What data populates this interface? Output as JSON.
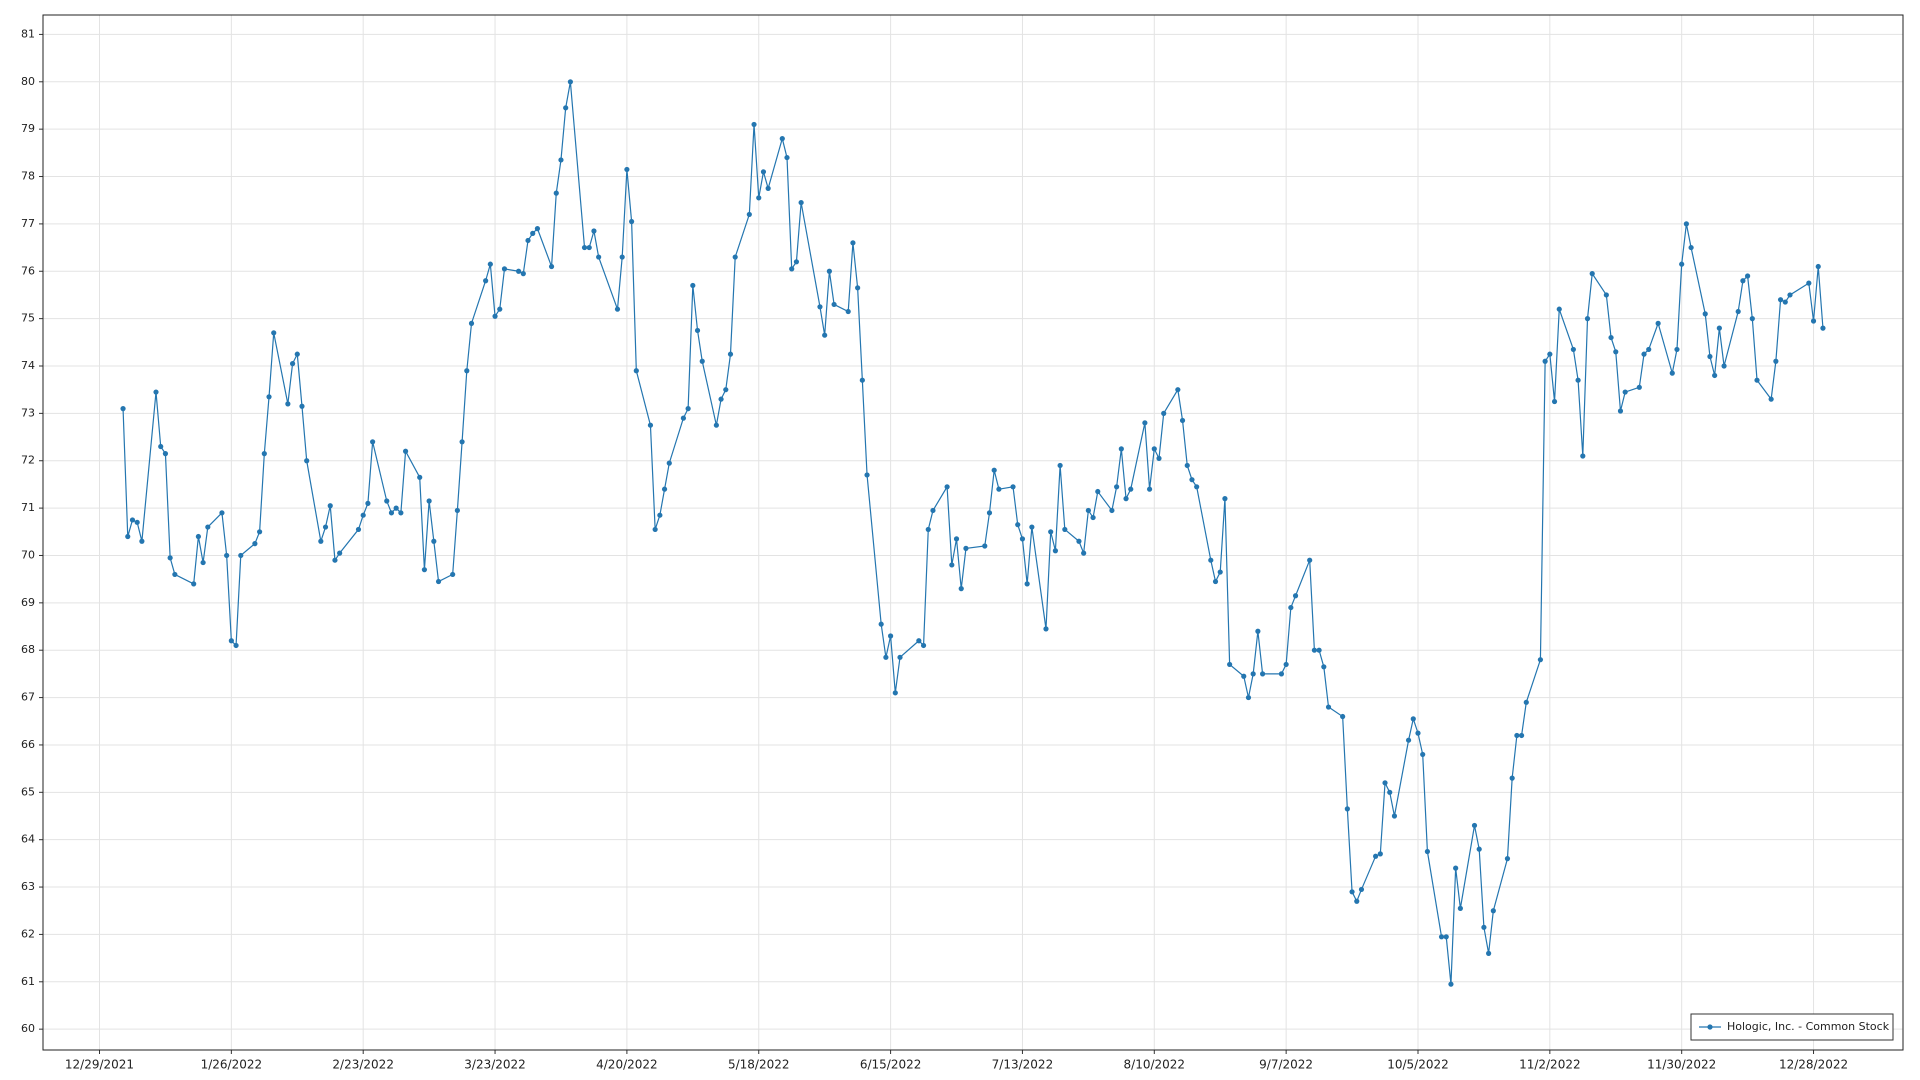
{
  "chart_data": {
    "type": "line",
    "x": [
      "2022-01-03",
      "2022-01-04",
      "2022-01-05",
      "2022-01-06",
      "2022-01-07",
      "2022-01-10",
      "2022-01-11",
      "2022-01-12",
      "2022-01-13",
      "2022-01-14",
      "2022-01-18",
      "2022-01-19",
      "2022-01-20",
      "2022-01-21",
      "2022-01-24",
      "2022-01-25",
      "2022-01-26",
      "2022-01-27",
      "2022-01-28",
      "2022-01-31",
      "2022-02-01",
      "2022-02-02",
      "2022-02-03",
      "2022-02-04",
      "2022-02-07",
      "2022-02-08",
      "2022-02-09",
      "2022-02-10",
      "2022-02-11",
      "2022-02-14",
      "2022-02-15",
      "2022-02-16",
      "2022-02-17",
      "2022-02-18",
      "2022-02-22",
      "2022-02-23",
      "2022-02-24",
      "2022-02-25",
      "2022-02-28",
      "2022-03-01",
      "2022-03-02",
      "2022-03-03",
      "2022-03-04",
      "2022-03-07",
      "2022-03-08",
      "2022-03-09",
      "2022-03-10",
      "2022-03-11",
      "2022-03-14",
      "2022-03-15",
      "2022-03-16",
      "2022-03-17",
      "2022-03-18",
      "2022-03-21",
      "2022-03-22",
      "2022-03-23",
      "2022-03-24",
      "2022-03-25",
      "2022-03-28",
      "2022-03-29",
      "2022-03-30",
      "2022-03-31",
      "2022-04-01",
      "2022-04-04",
      "2022-04-05",
      "2022-04-06",
      "2022-04-07",
      "2022-04-08",
      "2022-04-11",
      "2022-04-12",
      "2022-04-13",
      "2022-04-14",
      "2022-04-18",
      "2022-04-19",
      "2022-04-20",
      "2022-04-21",
      "2022-04-22",
      "2022-04-25",
      "2022-04-26",
      "2022-04-27",
      "2022-04-28",
      "2022-04-29",
      "2022-05-02",
      "2022-05-03",
      "2022-05-04",
      "2022-05-05",
      "2022-05-06",
      "2022-05-09",
      "2022-05-10",
      "2022-05-11",
      "2022-05-12",
      "2022-05-13",
      "2022-05-16",
      "2022-05-17",
      "2022-05-18",
      "2022-05-19",
      "2022-05-20",
      "2022-05-23",
      "2022-05-24",
      "2022-05-25",
      "2022-05-26",
      "2022-05-27",
      "2022-05-31",
      "2022-06-01",
      "2022-06-02",
      "2022-06-03",
      "2022-06-06",
      "2022-06-07",
      "2022-06-08",
      "2022-06-09",
      "2022-06-10",
      "2022-06-13",
      "2022-06-14",
      "2022-06-15",
      "2022-06-16",
      "2022-06-17",
      "2022-06-21",
      "2022-06-22",
      "2022-06-23",
      "2022-06-24",
      "2022-06-27",
      "2022-06-28",
      "2022-06-29",
      "2022-06-30",
      "2022-07-01",
      "2022-07-05",
      "2022-07-06",
      "2022-07-07",
      "2022-07-08",
      "2022-07-11",
      "2022-07-12",
      "2022-07-13",
      "2022-07-14",
      "2022-07-15",
      "2022-07-18",
      "2022-07-19",
      "2022-07-20",
      "2022-07-21",
      "2022-07-22",
      "2022-07-25",
      "2022-07-26",
      "2022-07-27",
      "2022-07-28",
      "2022-07-29",
      "2022-08-01",
      "2022-08-02",
      "2022-08-03",
      "2022-08-04",
      "2022-08-05",
      "2022-08-08",
      "2022-08-09",
      "2022-08-10",
      "2022-08-11",
      "2022-08-12",
      "2022-08-15",
      "2022-08-16",
      "2022-08-17",
      "2022-08-18",
      "2022-08-19",
      "2022-08-22",
      "2022-08-23",
      "2022-08-24",
      "2022-08-25",
      "2022-08-26",
      "2022-08-29",
      "2022-08-30",
      "2022-08-31",
      "2022-09-01",
      "2022-09-02",
      "2022-09-06",
      "2022-09-07",
      "2022-09-08",
      "2022-09-09",
      "2022-09-12",
      "2022-09-13",
      "2022-09-14",
      "2022-09-15",
      "2022-09-16",
      "2022-09-19",
      "2022-09-20",
      "2022-09-21",
      "2022-09-22",
      "2022-09-23",
      "2022-09-26",
      "2022-09-27",
      "2022-09-28",
      "2022-09-29",
      "2022-09-30",
      "2022-10-03",
      "2022-10-04",
      "2022-10-05",
      "2022-10-06",
      "2022-10-07",
      "2022-10-10",
      "2022-10-11",
      "2022-10-12",
      "2022-10-13",
      "2022-10-14",
      "2022-10-17",
      "2022-10-18",
      "2022-10-19",
      "2022-10-20",
      "2022-10-21",
      "2022-10-24",
      "2022-10-25",
      "2022-10-26",
      "2022-10-27",
      "2022-10-28",
      "2022-10-31",
      "2022-11-01",
      "2022-11-02",
      "2022-11-03",
      "2022-11-04",
      "2022-11-07",
      "2022-11-08",
      "2022-11-09",
      "2022-11-10",
      "2022-11-11",
      "2022-11-14",
      "2022-11-15",
      "2022-11-16",
      "2022-11-17",
      "2022-11-18",
      "2022-11-21",
      "2022-11-22",
      "2022-11-23",
      "2022-11-25",
      "2022-11-28",
      "2022-11-29",
      "2022-11-30",
      "2022-12-01",
      "2022-12-02",
      "2022-12-05",
      "2022-12-06",
      "2022-12-07",
      "2022-12-08",
      "2022-12-09",
      "2022-12-12",
      "2022-12-13",
      "2022-12-14",
      "2022-12-15",
      "2022-12-16",
      "2022-12-19",
      "2022-12-20",
      "2022-12-21",
      "2022-12-22",
      "2022-12-23",
      "2022-12-27",
      "2022-12-28",
      "2022-12-29",
      "2022-12-30"
    ],
    "series": [
      {
        "name": "Hologic, Inc. - Common Stock",
        "color": "#2476b0",
        "values": [
          73.1,
          70.4,
          70.75,
          70.7,
          70.3,
          73.45,
          72.3,
          72.15,
          69.95,
          69.6,
          69.4,
          70.4,
          69.85,
          70.6,
          70.9,
          70.0,
          68.2,
          68.1,
          70.0,
          70.25,
          70.5,
          72.15,
          73.35,
          74.7,
          73.2,
          74.05,
          74.25,
          73.15,
          72.0,
          70.3,
          70.6,
          71.05,
          69.9,
          70.05,
          70.55,
          70.85,
          71.1,
          72.4,
          71.15,
          70.9,
          71.0,
          70.9,
          72.2,
          71.65,
          69.7,
          71.15,
          70.3,
          69.45,
          69.6,
          70.95,
          72.4,
          73.9,
          74.9,
          75.8,
          76.15,
          75.05,
          75.2,
          76.05,
          76.0,
          75.95,
          76.65,
          76.8,
          76.9,
          76.1,
          77.65,
          78.35,
          79.45,
          80.0,
          76.5,
          76.5,
          76.85,
          76.3,
          75.2,
          76.3,
          78.15,
          77.05,
          73.9,
          72.75,
          70.55,
          70.85,
          71.4,
          71.95,
          72.9,
          73.1,
          75.7,
          74.75,
          74.1,
          72.75,
          73.3,
          73.5,
          74.25,
          76.3,
          77.2,
          79.1,
          77.55,
          78.1,
          77.75,
          78.8,
          78.4,
          76.05,
          76.2,
          77.45,
          75.25,
          74.65,
          76.0,
          75.3,
          75.15,
          76.6,
          75.65,
          73.7,
          71.7,
          68.55,
          67.85,
          68.3,
          67.1,
          67.85,
          68.2,
          68.1,
          70.55,
          70.95,
          71.45,
          69.8,
          70.35,
          69.3,
          70.15,
          70.2,
          70.9,
          71.8,
          71.4,
          71.45,
          70.65,
          70.35,
          69.4,
          70.6,
          68.45,
          70.5,
          70.1,
          71.9,
          70.55,
          70.3,
          70.05,
          70.95,
          70.8,
          71.35,
          70.95,
          71.45,
          72.25,
          71.2,
          71.4,
          72.8,
          71.4,
          72.25,
          72.05,
          73.0,
          73.5,
          72.85,
          71.9,
          71.6,
          71.45,
          69.9,
          69.45,
          69.65,
          71.2,
          67.7,
          67.45,
          67.0,
          67.5,
          68.4,
          67.5,
          67.5,
          67.7,
          68.9,
          69.15,
          69.9,
          68.0,
          68.0,
          67.65,
          66.8,
          66.6,
          64.65,
          62.9,
          62.7,
          62.95,
          63.65,
          63.7,
          65.2,
          65.0,
          64.5,
          66.1,
          66.55,
          66.25,
          65.8,
          63.75,
          61.95,
          61.95,
          60.95,
          63.4,
          62.55,
          64.3,
          63.8,
          62.15,
          61.6,
          62.5,
          63.6,
          65.3,
          66.2,
          66.2,
          66.9,
          67.8,
          74.1,
          74.25,
          73.25,
          75.2,
          74.35,
          73.7,
          72.1,
          75.0,
          75.95,
          75.5,
          74.6,
          74.3,
          73.05,
          73.45,
          73.55,
          74.25,
          74.35,
          74.9,
          73.85,
          74.35,
          76.15,
          77.0,
          76.5,
          75.1,
          74.2,
          73.8,
          74.8,
          74.0,
          75.15,
          75.8,
          75.9,
          75.0,
          73.7,
          73.3,
          74.1,
          75.4,
          75.35,
          75.5,
          75.75,
          74.95,
          76.1,
          74.8
        ]
      }
    ],
    "xlim": [
      "2021-12-17",
      "2023-01-16"
    ],
    "xticks": [
      {
        "value": "2021-12-29",
        "label": "12/29/2021"
      },
      {
        "value": "2022-01-26",
        "label": "1/26/2022"
      },
      {
        "value": "2022-02-23",
        "label": "2/23/2022"
      },
      {
        "value": "2022-03-23",
        "label": "3/23/2022"
      },
      {
        "value": "2022-04-20",
        "label": "4/20/2022"
      },
      {
        "value": "2022-05-18",
        "label": "5/18/2022"
      },
      {
        "value": "2022-06-15",
        "label": "6/15/2022"
      },
      {
        "value": "2022-07-13",
        "label": "7/13/2022"
      },
      {
        "value": "2022-08-10",
        "label": "8/10/2022"
      },
      {
        "value": "2022-09-07",
        "label": "9/7/2022"
      },
      {
        "value": "2022-10-05",
        "label": "10/5/2022"
      },
      {
        "value": "2022-11-02",
        "label": "11/2/2022"
      },
      {
        "value": "2022-11-30",
        "label": "11/30/2022"
      },
      {
        "value": "2022-12-28",
        "label": "12/28/2022"
      }
    ],
    "ylim": [
      59.56,
      81.41
    ],
    "yticks": [
      60,
      61,
      62,
      63,
      64,
      65,
      66,
      67,
      68,
      69,
      70,
      71,
      72,
      73,
      74,
      75,
      76,
      77,
      78,
      79,
      80,
      81
    ],
    "grid": true,
    "legend": "lower right"
  }
}
